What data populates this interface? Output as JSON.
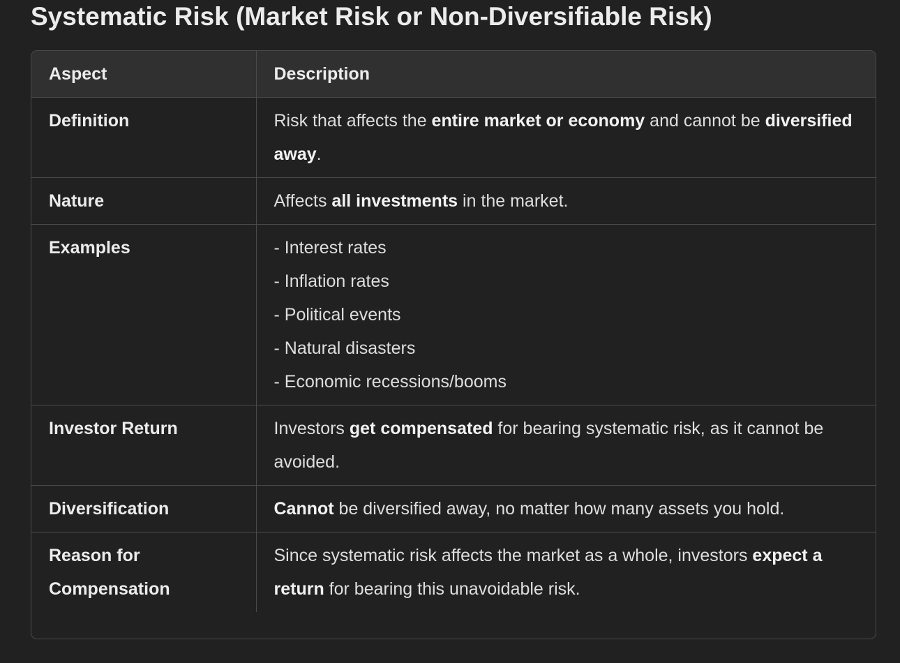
{
  "title": "Systematic Risk (Market Risk or Non-Diversifiable Risk)",
  "table": {
    "headers": [
      "Aspect",
      "Description"
    ],
    "rows": [
      {
        "aspect": "Definition",
        "desc": [
          {
            "t": "Risk that affects the "
          },
          {
            "t": "entire market or economy",
            "b": true
          },
          {
            "t": " and cannot be "
          },
          {
            "t": "diversified away",
            "b": true
          },
          {
            "t": "."
          }
        ]
      },
      {
        "aspect": "Nature",
        "desc": [
          {
            "t": "Affects "
          },
          {
            "t": "all investments",
            "b": true
          },
          {
            "t": " in the market."
          }
        ]
      },
      {
        "aspect": "Examples",
        "lines": [
          "- Interest rates",
          "- Inflation rates",
          "- Political events",
          "- Natural disasters",
          "- Economic recessions/booms"
        ]
      },
      {
        "aspect": "Investor Return",
        "desc": [
          {
            "t": "Investors "
          },
          {
            "t": "get compensated",
            "b": true
          },
          {
            "t": " for bearing systematic risk, as it cannot be avoided."
          }
        ]
      },
      {
        "aspect": "Diversification",
        "desc": [
          {
            "t": "Cannot",
            "b": true
          },
          {
            "t": " be diversified away, no matter how many assets you hold."
          }
        ]
      },
      {
        "aspect": "Reason for Compensation",
        "desc": [
          {
            "t": "Since systematic risk affects the market as a whole, investors "
          },
          {
            "t": "expect a return",
            "b": true
          },
          {
            "t": " for bearing this unavoidable risk."
          }
        ]
      }
    ]
  }
}
